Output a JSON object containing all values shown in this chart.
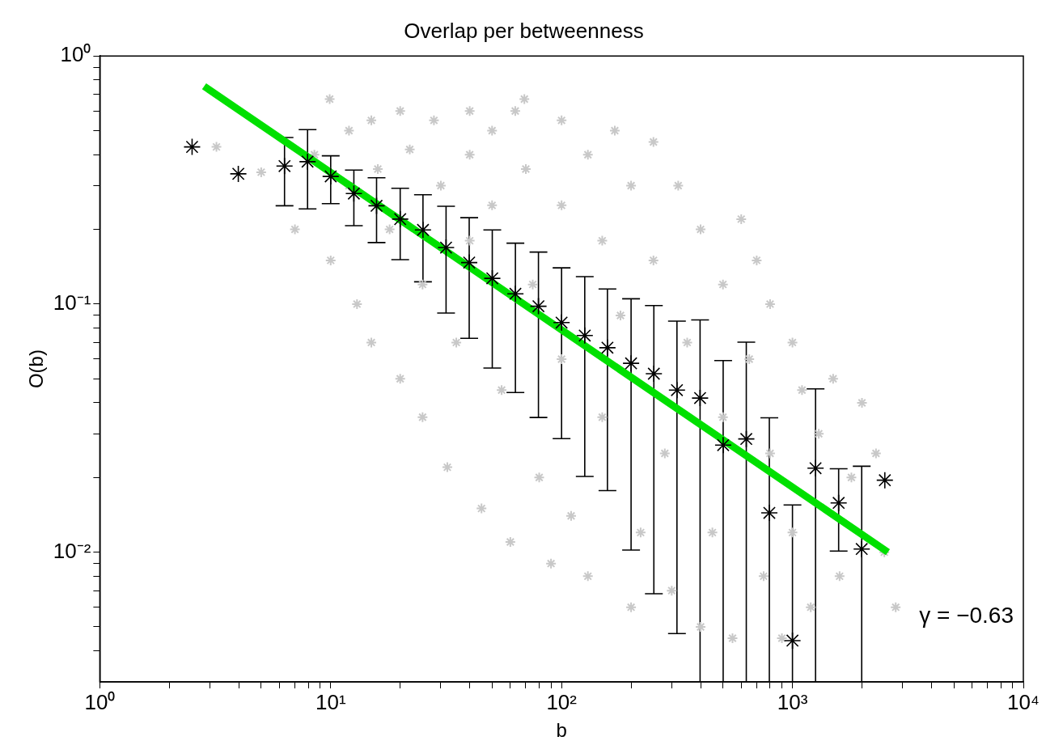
{
  "chart_data": {
    "type": "scatter",
    "title": "Overlap per betweenness",
    "xlabel": "b",
    "ylabel": "O(b)",
    "log": "xy",
    "marker": "cross",
    "legend": false,
    "annotations": [
      "γ = −0.63"
    ],
    "xlim": [
      1,
      10000
    ],
    "ylim": [
      0.003,
      1
    ],
    "xticks": [
      {
        "value": 1,
        "label": "10⁰"
      },
      {
        "value": 2,
        "label": null
      },
      {
        "value": 3,
        "label": null
      },
      {
        "value": 4,
        "label": null
      },
      {
        "value": 5,
        "label": null
      },
      {
        "value": 6,
        "label": null
      },
      {
        "value": 7,
        "label": null
      },
      {
        "value": 8,
        "label": null
      },
      {
        "value": 9,
        "label": null
      },
      {
        "value": 10,
        "label": "10¹"
      },
      {
        "value": 20,
        "label": null
      },
      {
        "value": 30,
        "label": null
      },
      {
        "value": 40,
        "label": null
      },
      {
        "value": 50,
        "label": null
      },
      {
        "value": 60,
        "label": null
      },
      {
        "value": 70,
        "label": null
      },
      {
        "value": 80,
        "label": null
      },
      {
        "value": 90,
        "label": null
      },
      {
        "value": 100,
        "label": "10²"
      },
      {
        "value": 200,
        "label": null
      },
      {
        "value": 300,
        "label": null
      },
      {
        "value": 400,
        "label": null
      },
      {
        "value": 500,
        "label": null
      },
      {
        "value": 600,
        "label": null
      },
      {
        "value": 700,
        "label": null
      },
      {
        "value": 800,
        "label": null
      },
      {
        "value": 900,
        "label": null
      },
      {
        "value": 1000,
        "label": "10³"
      },
      {
        "value": 2000,
        "label": null
      },
      {
        "value": 3000,
        "label": null
      },
      {
        "value": 4000,
        "label": null
      },
      {
        "value": 5000,
        "label": null
      },
      {
        "value": 6000,
        "label": null
      },
      {
        "value": 7000,
        "label": null
      },
      {
        "value": 8000,
        "label": null
      },
      {
        "value": 9000,
        "label": null
      },
      {
        "value": 10000,
        "label": "10⁴"
      }
    ],
    "yticks": [
      {
        "value": 0.004,
        "label": null
      },
      {
        "value": 0.005,
        "label": null
      },
      {
        "value": 0.006,
        "label": null
      },
      {
        "value": 0.007,
        "label": null
      },
      {
        "value": 0.008,
        "label": null
      },
      {
        "value": 0.009,
        "label": null
      },
      {
        "value": 0.01,
        "label": "10⁻²"
      },
      {
        "value": 0.02,
        "label": null
      },
      {
        "value": 0.03,
        "label": null
      },
      {
        "value": 0.04,
        "label": null
      },
      {
        "value": 0.05,
        "label": null
      },
      {
        "value": 0.06,
        "label": null
      },
      {
        "value": 0.07,
        "label": null
      },
      {
        "value": 0.08,
        "label": null
      },
      {
        "value": 0.09,
        "label": null
      },
      {
        "value": 0.1,
        "label": "10⁻¹"
      },
      {
        "value": 0.2,
        "label": null
      },
      {
        "value": 0.3,
        "label": null
      },
      {
        "value": 0.4,
        "label": null
      },
      {
        "value": 0.5,
        "label": null
      },
      {
        "value": 0.6,
        "label": null
      },
      {
        "value": 0.7,
        "label": null
      },
      {
        "value": 0.8,
        "label": null
      },
      {
        "value": 0.9,
        "label": null
      },
      {
        "value": 1,
        "label": "10⁰"
      }
    ],
    "series": [
      {
        "type": "scatter",
        "color": "#c8c8c8",
        "x": [
          9.9,
          69,
          3.2,
          5,
          7,
          8.5,
          10,
          12,
          12,
          13,
          15,
          15,
          16,
          18,
          20,
          20,
          22,
          25,
          25,
          28,
          30,
          32,
          35,
          40,
          40,
          40,
          45,
          50,
          50,
          55,
          60,
          63,
          70,
          75,
          80,
          90,
          100,
          100,
          100,
          110,
          130,
          130,
          150,
          150,
          170,
          180,
          200,
          200,
          220,
          250,
          250,
          280,
          300,
          320,
          350,
          400,
          400,
          450,
          500,
          500,
          550,
          600,
          650,
          700,
          750,
          800,
          800,
          900,
          1000,
          1000,
          1100,
          1200,
          1300,
          1500,
          1600,
          1800,
          2000,
          2300,
          2500,
          2800
        ],
        "values": [
          0.67,
          0.67,
          0.43,
          0.34,
          0.2,
          0.4,
          0.15,
          0.5,
          0.3,
          0.1,
          0.55,
          0.07,
          0.35,
          0.2,
          0.05,
          0.6,
          0.42,
          0.12,
          0.035,
          0.55,
          0.3,
          0.022,
          0.07,
          0.6,
          0.4,
          0.18,
          0.015,
          0.25,
          0.5,
          0.045,
          0.011,
          0.6,
          0.35,
          0.12,
          0.02,
          0.009,
          0.55,
          0.25,
          0.06,
          0.014,
          0.4,
          0.008,
          0.18,
          0.035,
          0.5,
          0.09,
          0.006,
          0.3,
          0.012,
          0.45,
          0.15,
          0.025,
          0.007,
          0.3,
          0.07,
          0.2,
          0.005,
          0.012,
          0.12,
          0.035,
          0.0045,
          0.22,
          0.06,
          0.15,
          0.008,
          0.1,
          0.025,
          0.0045,
          0.07,
          0.012,
          0.045,
          0.006,
          0.03,
          0.05,
          0.008,
          0.02,
          0.04,
          0.025,
          0.01,
          0.006
        ]
      },
      {
        "type": "line",
        "marker": "none",
        "color": "#00e000",
        "x": [
          2.83,
          2590
        ],
        "values": [
          0.755,
          0.01
        ]
      },
      {
        "type": "scatter",
        "color": "#000000",
        "x": [
          2.51,
          3.98,
          6.31,
          7.94,
          10,
          12.6,
          15.8,
          20,
          25.1,
          31.6,
          39.8,
          50.1,
          63.1,
          79.4,
          100,
          126,
          158,
          200,
          251,
          316,
          398,
          501,
          631,
          794,
          1000,
          1259,
          1585,
          1995,
          2512
        ],
        "values": [
          0.43,
          0.335,
          0.36,
          0.375,
          0.327,
          0.279,
          0.249,
          0.22,
          0.199,
          0.169,
          0.147,
          0.127,
          0.11,
          0.098,
          0.0842,
          0.0747,
          0.0667,
          0.0577,
          0.0524,
          0.045,
          0.0418,
          0.027,
          0.0286,
          0.0144,
          0.0044,
          0.0218,
          0.0158,
          0.0103,
          0.0195
        ],
        "errors": [
          null,
          null,
          [
            0.249,
            0.469
          ],
          [
            0.242,
            0.505
          ],
          [
            0.254,
            0.396
          ],
          [
            0.207,
            0.347
          ],
          [
            0.177,
            0.323
          ],
          [
            0.151,
            0.293
          ],
          [
            0.123,
            0.276
          ],
          [
            0.092,
            0.248
          ],
          [
            0.0728,
            0.223
          ],
          [
            0.0552,
            0.199
          ],
          [
            0.044,
            0.176
          ],
          [
            0.0349,
            0.162
          ],
          [
            0.0287,
            0.14
          ],
          [
            0.0202,
            0.129
          ],
          [
            0.0177,
            0.115
          ],
          [
            0.0102,
            0.105
          ],
          [
            0.0068,
            0.0986
          ],
          [
            0.0047,
            0.0854
          ],
          [
            0.003,
            0.0863
          ],
          [
            0.003,
            0.0592
          ],
          [
            0.003,
            0.0702
          ],
          [
            0.003,
            0.0348
          ],
          [
            0.003,
            0.0155
          ],
          [
            0.003,
            0.0455
          ],
          [
            0.0101,
            0.0217
          ],
          [
            0.003,
            0.0222
          ],
          null
        ]
      }
    ]
  }
}
